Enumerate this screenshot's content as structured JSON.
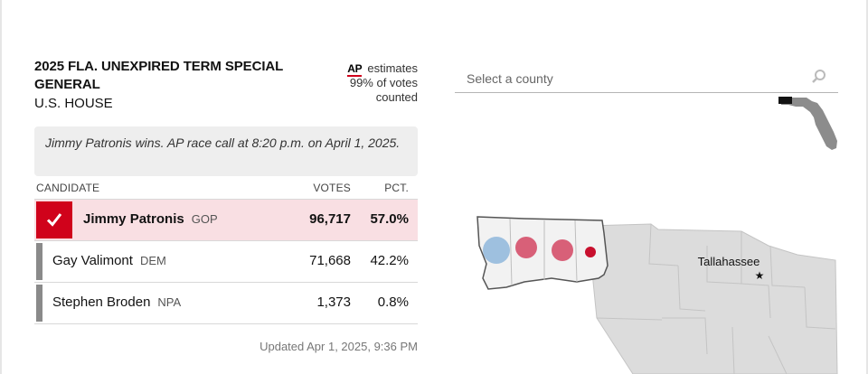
{
  "race": {
    "title": "2025 FLA. UNEXPIRED TERM SPECIAL GENERAL",
    "subtitle": "U.S. HOUSE"
  },
  "estimate": {
    "source": "AP",
    "label": "estimates",
    "line1": "99% of votes",
    "line2": "counted"
  },
  "call_note": "Jimmy Patronis wins. AP race call at 8:20 p.m. on April 1, 2025.",
  "table": {
    "headers": {
      "candidate": "CANDIDATE",
      "votes": "VOTES",
      "pct": "PCT."
    },
    "rows": [
      {
        "name": "Jimmy Patronis",
        "party": "GOP",
        "votes": "96,717",
        "pct": "57.0%",
        "winner": true
      },
      {
        "name": "Gay Valimont",
        "party": "DEM",
        "votes": "71,668",
        "pct": "42.2%",
        "winner": false
      },
      {
        "name": "Stephen Broden",
        "party": "NPA",
        "votes": "1,373",
        "pct": "0.8%",
        "winner": false
      }
    ]
  },
  "updated": "Updated Apr 1, 2025, 9:36 PM",
  "search": {
    "placeholder": "Select a county"
  },
  "map": {
    "city_label": "Tallahassee",
    "colors": {
      "gop": "#c8102e",
      "gop_light": "#d5506a",
      "dem": "#8fb7dc",
      "state": "#d9d9d9",
      "district": "#f2f2f2"
    }
  }
}
